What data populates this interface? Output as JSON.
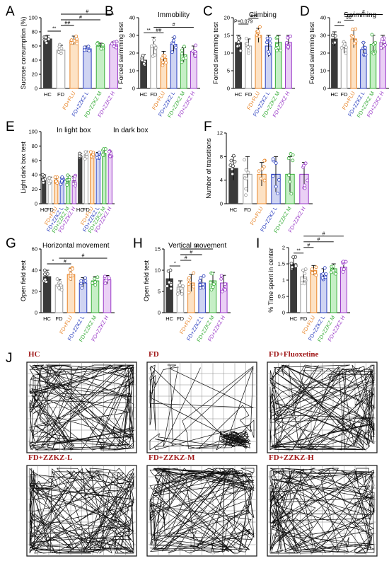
{
  "groups": [
    "HC",
    "FD",
    "FD+FLU",
    "FD+ZZKZ L",
    "FD+ZZKZ M",
    "FD+ZZKZ H"
  ],
  "colors": [
    "#3a3a3a",
    "#9a9a9a",
    "#e8862a",
    "#2b3fbf",
    "#3aae3a",
    "#9a3ac8"
  ],
  "fills": [
    "#3a3a3a",
    "#ffffff",
    "#fde2c4",
    "#cfd4f2",
    "#c6efc6",
    "#ead0f5"
  ],
  "chart_data": [
    {
      "id": "A",
      "type": "bar",
      "letter": "A",
      "title": "",
      "ylabel": "Sucrose consumption (%)",
      "ylim": [
        0,
        100
      ],
      "yticks": [
        0,
        20,
        40,
        60,
        80,
        100
      ],
      "values": [
        70,
        54,
        68,
        56,
        60,
        62
      ],
      "errors": [
        5,
        7,
        6,
        4,
        4,
        4
      ],
      "sig": [
        {
          "a": 0,
          "b": 1,
          "text": "**",
          "level": 0
        },
        {
          "a": 1,
          "b": 2,
          "text": "##",
          "level": 1
        },
        {
          "a": 1,
          "b": 4,
          "text": "#",
          "level": 2
        },
        {
          "a": 1,
          "b": 5,
          "text": "#",
          "level": 3
        }
      ]
    },
    {
      "id": "B",
      "type": "bar",
      "letter": "B",
      "title": "Immobility",
      "ylabel": "Forced swimming test",
      "ylim": [
        0,
        40
      ],
      "yticks": [
        0,
        10,
        20,
        30,
        40
      ],
      "values": [
        16,
        24,
        17,
        25,
        19,
        21
      ],
      "errors": [
        3,
        5,
        4,
        4,
        4,
        3
      ],
      "sig": [
        {
          "a": 0,
          "b": 1,
          "text": "**",
          "level": 0
        },
        {
          "a": 1,
          "b": 2,
          "text": "##",
          "level": 0
        },
        {
          "a": 1,
          "b": 5,
          "text": "#",
          "level": 1
        }
      ]
    },
    {
      "id": "C",
      "type": "bar",
      "letter": "C",
      "title": "Climbing",
      "ylabel": "Forced swimming test",
      "ylim": [
        0,
        20
      ],
      "yticks": [
        0,
        5,
        10,
        15,
        20
      ],
      "values": [
        13,
        12,
        15,
        12,
        13,
        13
      ],
      "errors": [
        2,
        2,
        2,
        3,
        2,
        2
      ],
      "sig": [
        {
          "a": 0,
          "b": 1,
          "text": "P=0.079",
          "level": 0
        },
        {
          "a": 1,
          "b": 2,
          "text": "##",
          "level": 1
        }
      ]
    },
    {
      "id": "D",
      "type": "bar",
      "letter": "D",
      "title": "Swimming",
      "ylabel": "Forced swimming test",
      "ylim": [
        0,
        40
      ],
      "yticks": [
        0,
        10,
        20,
        30,
        40
      ],
      "values": [
        28,
        23,
        28,
        22,
        25,
        26
      ],
      "errors": [
        4,
        3,
        5,
        4,
        5,
        4
      ],
      "sig": [
        {
          "a": 0,
          "b": 1,
          "text": "**",
          "level": 0
        },
        {
          "a": 1,
          "b": 2,
          "text": "##",
          "level": 1
        },
        {
          "a": 1,
          "b": 5,
          "text": "#",
          "level": 2
        }
      ]
    },
    {
      "id": "E",
      "type": "bar",
      "letter": "E",
      "title": "In light box",
      "title2": "In dark box",
      "ylabel": "Light dark box test",
      "ylim": [
        0,
        100
      ],
      "yticks": [
        0,
        20,
        40,
        60,
        80,
        100
      ],
      "values": [
        35,
        32,
        33,
        31,
        33,
        32
      ],
      "errors": [
        5,
        5,
        4,
        5,
        6,
        6
      ],
      "values2": [
        66,
        68,
        68,
        67,
        70,
        68
      ],
      "errors2": [
        4,
        5,
        4,
        4,
        5,
        5
      ],
      "sig": []
    },
    {
      "id": "F",
      "type": "bar",
      "letter": "F",
      "title": "",
      "ylabel": "Number of transitions",
      "ylim": [
        0,
        12
      ],
      "yticks": [
        0,
        4,
        8,
        12
      ],
      "values": [
        6,
        5,
        5,
        5,
        5,
        5
      ],
      "errors": [
        2,
        3,
        2,
        3,
        3,
        2
      ],
      "sig": []
    },
    {
      "id": "G",
      "type": "bar",
      "letter": "G",
      "title": "Horizontal movement",
      "ylabel": "Open field test",
      "ylim": [
        0,
        60
      ],
      "yticks": [
        0,
        20,
        40,
        60
      ],
      "values": [
        34,
        26,
        36,
        28,
        30,
        31
      ],
      "errors": [
        6,
        5,
        6,
        5,
        4,
        4
      ],
      "sig": [
        {
          "a": 0,
          "b": 1,
          "text": "*",
          "level": 0
        },
        {
          "a": 1,
          "b": 2,
          "text": "#",
          "level": 0
        },
        {
          "a": 1,
          "b": 5,
          "text": "#",
          "level": 1
        }
      ]
    },
    {
      "id": "H",
      "type": "bar",
      "letter": "H",
      "title": "Vertical movement",
      "ylabel": "Open field test",
      "ylim": [
        0,
        15
      ],
      "yticks": [
        0,
        5,
        10,
        15
      ],
      "values": [
        8,
        6,
        7,
        7,
        7.5,
        7
      ],
      "errors": [
        2,
        1.5,
        2,
        1.5,
        2,
        1.8
      ],
      "sig": [
        {
          "a": 0,
          "b": 1,
          "text": "*",
          "level": 0
        },
        {
          "a": 1,
          "b": 2,
          "text": "#",
          "level": 1
        },
        {
          "a": 1,
          "b": 3,
          "text": "#",
          "level": 2
        },
        {
          "a": 1,
          "b": 4,
          "text": "#",
          "level": 3
        }
      ]
    },
    {
      "id": "I",
      "type": "bar",
      "letter": "I",
      "title": "",
      "ylabel": "% Time spent in center",
      "ylim": [
        0,
        2.0
      ],
      "yticks": [
        0,
        0.5,
        1.0,
        1.5,
        2.0
      ],
      "values": [
        1.5,
        1.1,
        1.3,
        1.2,
        1.35,
        1.4
      ],
      "errors": [
        0.2,
        0.2,
        0.15,
        0.15,
        0.15,
        0.15
      ],
      "sig": [
        {
          "a": 0,
          "b": 1,
          "text": "**",
          "level": 0
        },
        {
          "a": 1,
          "b": 2,
          "text": "#",
          "level": 1
        },
        {
          "a": 1,
          "b": 4,
          "text": "#",
          "level": 2
        },
        {
          "a": 1,
          "b": 5,
          "text": "#",
          "level": 3
        }
      ]
    }
  ],
  "panelJ": {
    "letter": "J",
    "tracks": [
      {
        "label": "HC",
        "density": "dense"
      },
      {
        "label": "FD",
        "density": "corner"
      },
      {
        "label": "FD+Fluoxetine",
        "density": "dense"
      },
      {
        "label": "FD+ZZKZ-L",
        "density": "dense"
      },
      {
        "label": "FD+ZZKZ-M",
        "density": "dense"
      },
      {
        "label": "FD+ZZKZ-H",
        "density": "dense"
      }
    ]
  }
}
